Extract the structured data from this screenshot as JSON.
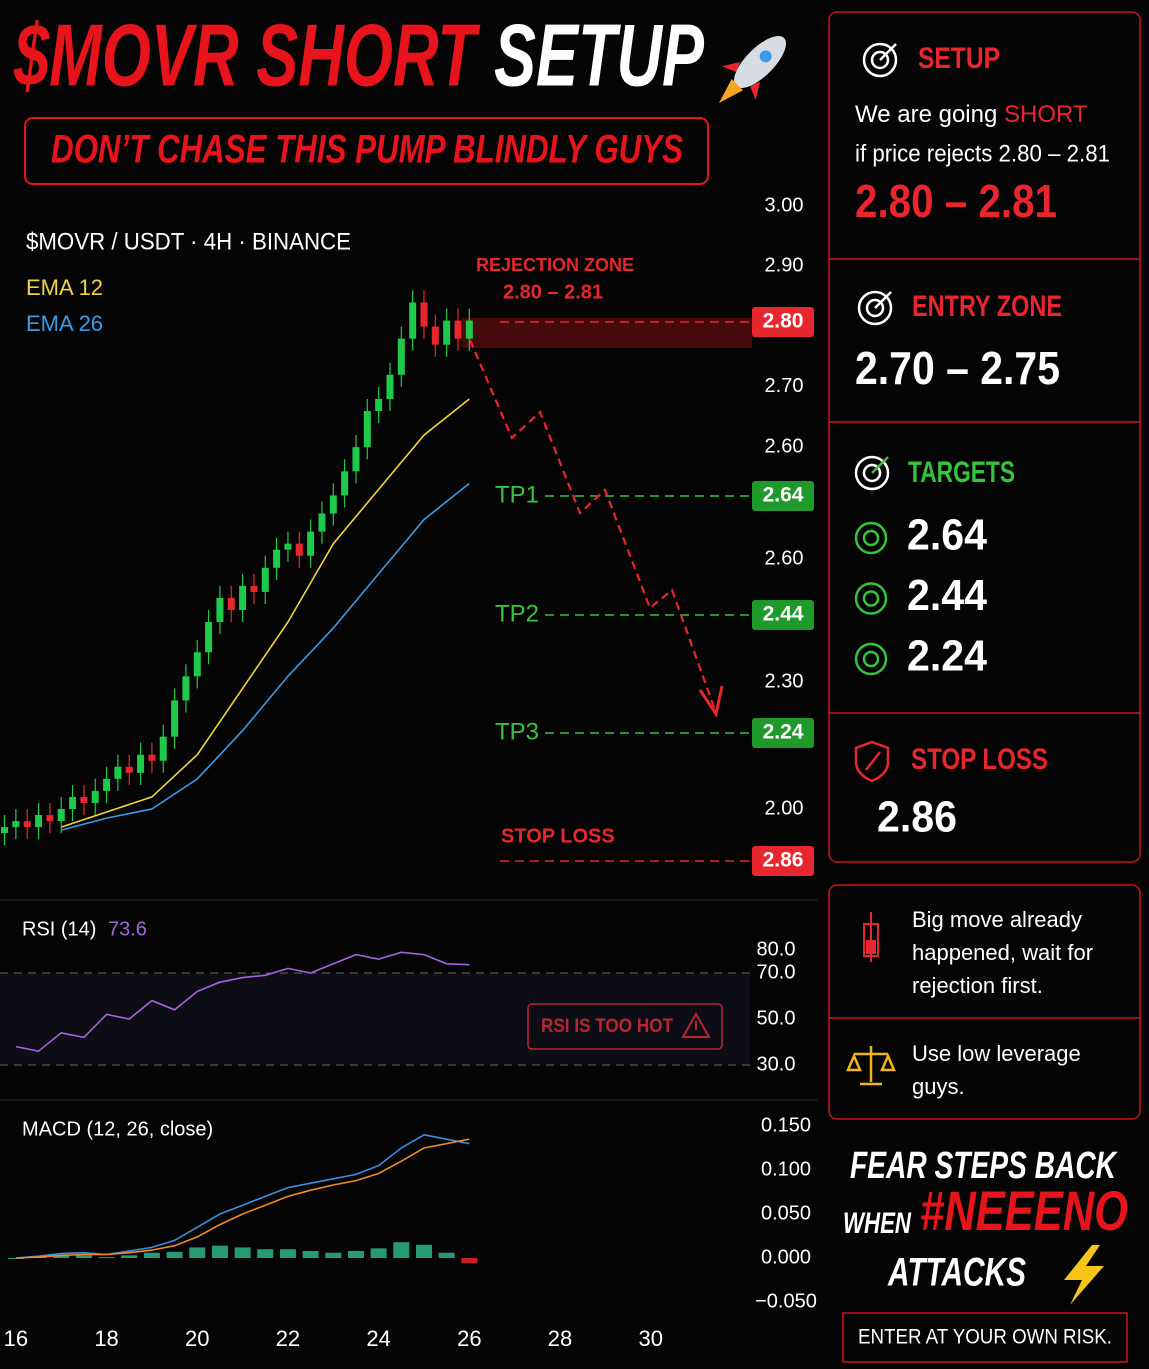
{
  "header": {
    "title": "$MOVR SHORT",
    "title_accent": "SETUP",
    "subtitle": "DON’T CHASE THIS PUMP BLINDLY GUYS"
  },
  "chart_data": [
    {
      "type": "candlestick",
      "title": "$MOVR / USDT · 4H · BINANCE",
      "x": [
        15.75,
        16,
        16.25,
        16.5,
        16.75,
        17,
        17.25,
        17.5,
        17.75,
        18,
        18.25,
        18.5,
        18.75,
        19,
        19.25,
        19.5,
        19.75,
        20,
        20.25,
        20.5,
        20.75,
        21,
        21.25,
        21.5,
        21.75,
        22,
        22.25,
        22.5,
        22.75,
        23,
        23.25,
        23.5,
        23.75,
        24,
        24.25,
        24.5,
        24.75,
        25,
        25.25,
        25.5,
        25.75,
        26
      ],
      "open": [
        1.96,
        1.97,
        1.98,
        1.97,
        1.99,
        1.98,
        2.0,
        2.02,
        2.01,
        2.03,
        2.05,
        2.07,
        2.06,
        2.09,
        2.08,
        2.12,
        2.18,
        2.22,
        2.26,
        2.31,
        2.35,
        2.33,
        2.37,
        2.36,
        2.4,
        2.43,
        2.44,
        2.42,
        2.46,
        2.49,
        2.52,
        2.56,
        2.6,
        2.66,
        2.68,
        2.72,
        2.78,
        2.84,
        2.8,
        2.77,
        2.81,
        2.78
      ],
      "high": [
        1.99,
        2.0,
        2.0,
        2.01,
        2.01,
        2.02,
        2.04,
        2.04,
        2.05,
        2.07,
        2.09,
        2.09,
        2.11,
        2.11,
        2.14,
        2.2,
        2.24,
        2.28,
        2.33,
        2.37,
        2.37,
        2.39,
        2.39,
        2.42,
        2.45,
        2.46,
        2.46,
        2.48,
        2.51,
        2.54,
        2.58,
        2.62,
        2.68,
        2.7,
        2.74,
        2.8,
        2.86,
        2.86,
        2.82,
        2.83,
        2.83,
        2.83
      ],
      "low": [
        1.94,
        1.95,
        1.95,
        1.95,
        1.96,
        1.96,
        1.98,
        1.99,
        1.99,
        2.01,
        2.03,
        2.04,
        2.04,
        2.06,
        2.06,
        2.1,
        2.16,
        2.2,
        2.24,
        2.29,
        2.31,
        2.31,
        2.34,
        2.34,
        2.38,
        2.41,
        2.4,
        2.4,
        2.44,
        2.47,
        2.5,
        2.54,
        2.58,
        2.64,
        2.66,
        2.7,
        2.76,
        2.78,
        2.75,
        2.75,
        2.76,
        2.76
      ],
      "close": [
        1.97,
        1.98,
        1.97,
        1.99,
        1.98,
        2.0,
        2.02,
        2.01,
        2.03,
        2.05,
        2.07,
        2.06,
        2.09,
        2.08,
        2.12,
        2.18,
        2.22,
        2.26,
        2.31,
        2.35,
        2.33,
        2.37,
        2.36,
        2.4,
        2.43,
        2.44,
        2.42,
        2.46,
        2.49,
        2.52,
        2.56,
        2.6,
        2.66,
        2.68,
        2.72,
        2.78,
        2.84,
        2.8,
        2.77,
        2.81,
        2.78,
        2.81
      ],
      "up_color": "#1fc94a",
      "down_color": "#e8262d",
      "series": [
        {
          "name": "EMA 12",
          "color": "#f2d43c",
          "x": [
            17,
            18,
            19,
            20,
            21,
            22,
            23,
            24,
            25,
            26
          ],
          "values": [
            1.97,
            1.995,
            2.02,
            2.09,
            2.2,
            2.31,
            2.44,
            2.53,
            2.62,
            2.68
          ]
        },
        {
          "name": "EMA 26",
          "color": "#3a9be8",
          "x": [
            17,
            18,
            19,
            20,
            21,
            22,
            23,
            24,
            25,
            26
          ],
          "values": [
            1.965,
            1.985,
            2.0,
            2.05,
            2.13,
            2.22,
            2.3,
            2.39,
            2.48,
            2.54
          ]
        }
      ],
      "xlim": [
        15.65,
        32.3
      ],
      "ylim": [
        1.87,
        3.0
      ],
      "yticks": [
        {
          "value": 3,
          "label": "3.00"
        },
        {
          "value": 2.9,
          "label": "2.90"
        },
        {
          "value": 2.7,
          "label": "2.70"
        },
        {
          "value": 2.6,
          "label": "2.60"
        },
        {
          "value": 2,
          "label": "2.00"
        }
      ],
      "extra_ytick_labels": [
        "2.60",
        "2.30"
      ],
      "zone": {
        "label": "REJECTION ZONE",
        "range": "2.80 – 2.81"
      },
      "levels": [
        {
          "price": {
            "value": 2.8,
            "label": "2.80"
          },
          "color": "#e8262d"
        },
        {
          "name": "TP1",
          "price": {
            "value": 2.64,
            "label": "2.64"
          },
          "color": "#1f9a2a"
        },
        {
          "name": "TP2",
          "price": {
            "value": 2.44,
            "label": "2.44"
          },
          "color": "#1f9a2a"
        },
        {
          "name": "TP3",
          "price": {
            "value": 2.24,
            "label": "2.24"
          },
          "color": "#1f9a2a"
        },
        {
          "name": "STOP LOSS",
          "price": {
            "value": 2.86,
            "label": "2.86"
          },
          "color": "#e8262d"
        }
      ]
    },
    {
      "type": "line",
      "title": "RSI (14)",
      "x": [
        16,
        16.5,
        17,
        17.5,
        18,
        18.5,
        19,
        19.5,
        20,
        20.5,
        21,
        21.5,
        22,
        22.5,
        23,
        23.5,
        24,
        24.5,
        25,
        25.5,
        26
      ],
      "values": [
        38,
        36,
        44,
        42,
        52,
        50,
        58,
        54,
        62,
        66,
        68,
        69,
        72,
        70,
        74,
        78,
        76,
        79,
        78,
        74,
        73.6
      ],
      "color": "#a463e0",
      "xlim": [
        15.65,
        32.3
      ],
      "ylim": [
        20,
        100
      ],
      "yticks": [
        {
          "value": 80,
          "label": "80.0"
        },
        {
          "value": 70,
          "label": "70.0"
        },
        {
          "value": 50,
          "label": "50.0"
        },
        {
          "value": 30,
          "label": "30.0"
        }
      ],
      "guide_lines": [
        70,
        30
      ],
      "badge": "RSI IS TOO HOT"
    },
    {
      "type": "macd",
      "title": "MACD (12, 26, close)",
      "x": [
        16,
        16.5,
        17,
        17.5,
        18,
        18.5,
        19,
        19.5,
        20,
        20.5,
        21,
        21.5,
        22,
        22.5,
        23,
        23.5,
        24,
        24.5,
        25,
        25.5,
        26
      ],
      "macd": {
        "color": "#3b8fe0",
        "values": [
          0.0,
          0.002,
          0.005,
          0.006,
          0.004,
          0.008,
          0.012,
          0.02,
          0.035,
          0.05,
          0.06,
          0.07,
          0.08,
          0.085,
          0.09,
          0.095,
          0.105,
          0.125,
          0.14,
          0.135,
          0.13
        ]
      },
      "signal": {
        "color": "#f08a24",
        "values": [
          0.0,
          0.001,
          0.003,
          0.004,
          0.004,
          0.006,
          0.009,
          0.014,
          0.024,
          0.038,
          0.05,
          0.06,
          0.07,
          0.077,
          0.083,
          0.088,
          0.096,
          0.11,
          0.125,
          0.13,
          0.135
        ]
      },
      "histogram": {
        "up_color": "#2bb58a",
        "down_color": "#e8262d",
        "values": [
          0.0,
          0.002,
          0.003,
          0.003,
          0.001,
          0.003,
          0.006,
          0.007,
          0.012,
          0.014,
          0.012,
          0.01,
          0.01,
          0.008,
          0.006,
          0.008,
          0.011,
          0.018,
          0.015,
          0.006,
          -0.006
        ]
      },
      "xlim": [
        15.65,
        32.3
      ],
      "ylim": [
        -0.075,
        0.175
      ],
      "yticks": [
        {
          "value": 0.15,
          "label": "0.150"
        },
        {
          "value": 0.1,
          "label": "0.100"
        },
        {
          "value": 0.05,
          "label": "0.050"
        },
        {
          "value": 0,
          "label": "0.000"
        },
        {
          "value": -0.05,
          "label": "−0.050"
        }
      ],
      "xticks": [
        16,
        18,
        20,
        22,
        24,
        26,
        28,
        30
      ]
    }
  ],
  "sidebar": {
    "setup": {
      "title": "SETUP",
      "text_start": "We are going ",
      "text_accent": "SHORT",
      "text_line2": "if price rejects 2.80 – 2.81",
      "range": "2.80 – 2.81"
    },
    "entry": {
      "title": "ENTRY ZONE",
      "range": "2.70 – 2.75"
    },
    "targets": {
      "title": "TARGETS",
      "items": [
        "2.64",
        "2.44",
        "2.24"
      ]
    },
    "stop": {
      "title": "STOP LOSS",
      "value": "2.86"
    },
    "notes": [
      "Big move already happened, wait for rejection first.",
      "Use low leverage guys."
    ],
    "slogan": {
      "line1": "FEAR STEPS BACK",
      "when": "WHEN",
      "hashtag": "#NEEENO",
      "line3": "ATTACKS"
    },
    "disclaimer": "ENTER AT YOUR OWN RISK."
  }
}
